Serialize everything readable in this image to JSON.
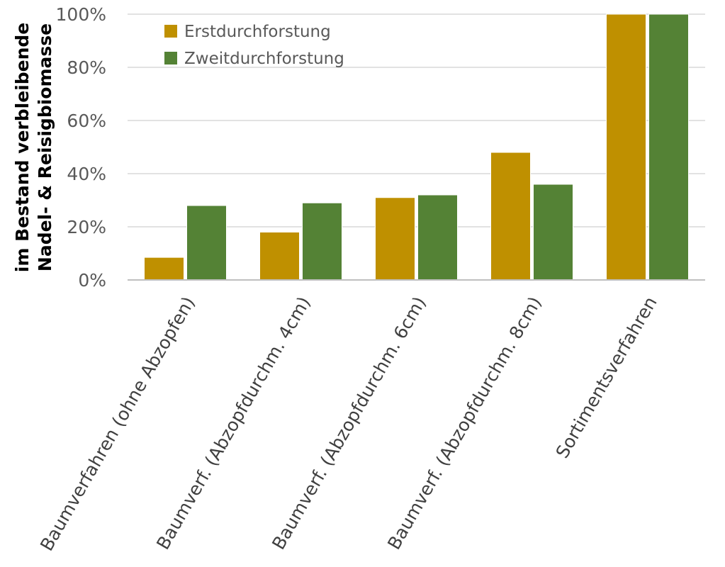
{
  "chart_data": {
    "type": "bar",
    "ylabel_lines": [
      "im Bestand verbleibende",
      "Nadel- & Reisigbiomasse"
    ],
    "categories": [
      "Baumverfahren (ohne Abzopfen)",
      "Baumverf. (Abzopfdurchm. 4cm)",
      "Baumverf. (Abzopfdurchm. 6cm)",
      "Baumverf. (Abzopfdurchm. 8cm)",
      "Sortimentsverfahren"
    ],
    "series": [
      {
        "name": "Erstdurchforstung",
        "color": "#bf9000",
        "values": [
          8.5,
          18,
          31,
          48,
          100
        ]
      },
      {
        "name": "Zweitdurchforstung",
        "color": "#548235",
        "values": [
          28,
          29,
          32,
          36,
          100
        ]
      }
    ],
    "ylim": [
      0,
      100
    ],
    "yticks": [
      0,
      20,
      40,
      60,
      80,
      100
    ],
    "ytick_labels": [
      "0%",
      "20%",
      "40%",
      "60%",
      "80%",
      "100%"
    ],
    "grid": true,
    "legend_position": "top-left"
  }
}
